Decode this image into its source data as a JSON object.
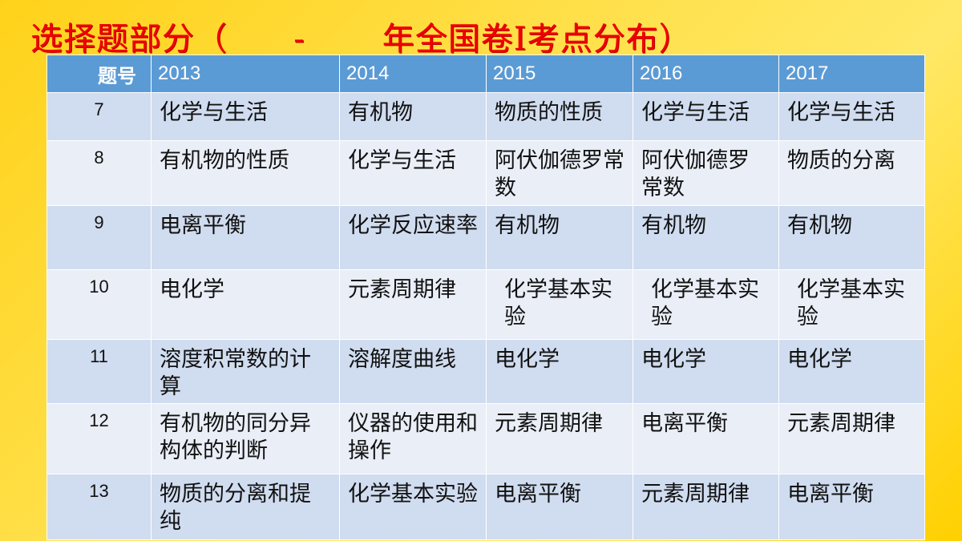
{
  "title": "选择题部分（      -       年全国卷Ⅰ考点分布）",
  "table": {
    "headers": [
      "题号",
      "2013",
      "2014",
      "2015",
      "2016",
      "2017"
    ],
    "rows": [
      [
        "7",
        "化学与生活",
        "有机物",
        "物质的性质",
        "化学与生活",
        "化学与生活"
      ],
      [
        "8",
        "有机物的性质",
        "化学与生活",
        "阿伏伽德罗常数",
        "阿伏伽德罗常数",
        "物质的分离"
      ],
      [
        "9",
        "电离平衡",
        "化学反应速率",
        "有机物",
        "有机物",
        "有机物"
      ],
      [
        "10",
        "电化学",
        "元素周期律",
        "化学基本实验",
        "化学基本实验",
        "化学基本实验"
      ],
      [
        "11",
        "溶度积常数的计算",
        "溶解度曲线",
        "电化学",
        "电化学",
        "电化学"
      ],
      [
        "12",
        "有机物的同分异构体的判断",
        "仪器的使用和操作",
        "元素周期律",
        "电离平衡",
        "元素周期律"
      ],
      [
        "13",
        "物质的分离和提纯",
        "化学基本实验",
        "电离平衡",
        "元素周期律",
        "电离平衡"
      ]
    ]
  },
  "colors": {
    "header": "#5b9bd5",
    "row_odd": "#d0dcef",
    "row_even": "#e9eef7",
    "title": "#f00000",
    "background": "#ffd21a"
  }
}
